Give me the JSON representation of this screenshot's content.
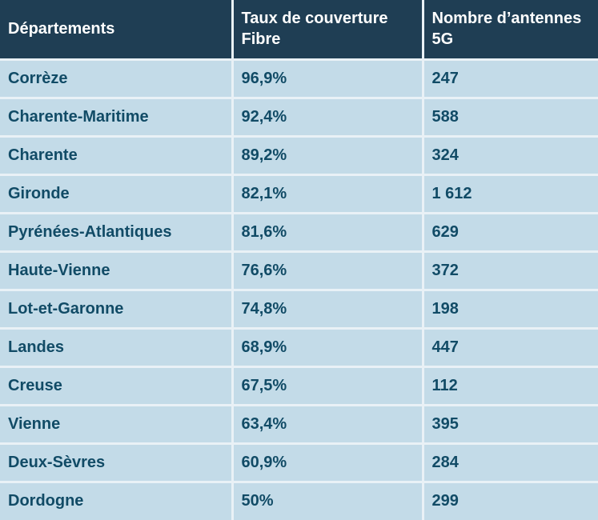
{
  "colors": {
    "header_bg": "#1f3e54",
    "header_text": "#ffffff",
    "row_bg": "#c3dbe8",
    "row_text": "#114b66",
    "divider": "#e9f1f6"
  },
  "table": {
    "columns": [
      {
        "label": "Départements"
      },
      {
        "label": "Taux de couverture Fibre"
      },
      {
        "label": "Nombre d’antennes 5G"
      }
    ],
    "rows": [
      {
        "departement": "Corrèze",
        "fibre": "96,9%",
        "antennes": "247"
      },
      {
        "departement": "Charente-Maritime",
        "fibre": "92,4%",
        "antennes": "588"
      },
      {
        "departement": "Charente",
        "fibre": "89,2%",
        "antennes": "324"
      },
      {
        "departement": "Gironde",
        "fibre": "82,1%",
        "antennes": "1 612"
      },
      {
        "departement": "Pyrénées-Atlantiques",
        "fibre": "81,6%",
        "antennes": "629"
      },
      {
        "departement": "Haute-Vienne",
        "fibre": "76,6%",
        "antennes": "372"
      },
      {
        "departement": "Lot-et-Garonne",
        "fibre": "74,8%",
        "antennes": "198"
      },
      {
        "departement": "Landes",
        "fibre": "68,9%",
        "antennes": "447"
      },
      {
        "departement": "Creuse",
        "fibre": "67,5%",
        "antennes": "112"
      },
      {
        "departement": "Vienne",
        "fibre": "63,4%",
        "antennes": "395"
      },
      {
        "departement": "Deux-Sèvres",
        "fibre": "60,9%",
        "antennes": "284"
      },
      {
        "departement": "Dordogne",
        "fibre": "50%",
        "antennes": "299"
      }
    ]
  }
}
